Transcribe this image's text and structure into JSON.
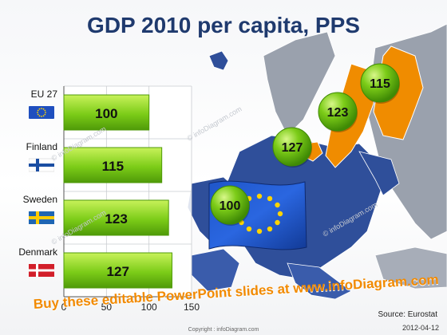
{
  "title": "GDP 2010 per capita, PPS",
  "source": "Source: Eurostat",
  "date": "2012-04-12",
  "promo": "Buy these editable PowerPoint slides at www.infoDiagram.com",
  "copyright": "Copyright : infoDiagram.com",
  "watermark": "© infoDiagram.com",
  "colors": {
    "bar": "#7ccc18",
    "bar_dark": "#4f9a08",
    "bubble": "#7ccc18",
    "highlight_country": "#f08c00",
    "eu_country": "#2f4f9a",
    "other_country": "#9aa1ad",
    "title": "#1f3a6e",
    "promo": "#f28a00"
  },
  "icons": {
    "eu": "eu-flag-icon",
    "finland": "finland-flag-icon",
    "sweden": "sweden-flag-icon",
    "denmark": "denmark-flag-icon"
  },
  "chart_data": {
    "type": "bar",
    "orientation": "horizontal",
    "categories": [
      "EU 27",
      "Finland",
      "Sweden",
      "Denmark"
    ],
    "values": [
      100,
      115,
      123,
      127
    ],
    "data_labels": [
      "100",
      "115",
      "123",
      "127"
    ],
    "xlim": [
      0,
      150
    ],
    "xticks": [
      "0",
      "50",
      "100",
      "150"
    ],
    "title": "GDP 2010 per capita, PPS",
    "xlabel": "",
    "ylabel": "",
    "grid": true
  },
  "map_bubbles": [
    {
      "country": "Finland",
      "value": "115"
    },
    {
      "country": "Sweden",
      "value": "123"
    },
    {
      "country": "Denmark",
      "value": "127"
    },
    {
      "country": "EU 27",
      "value": "100"
    }
  ]
}
